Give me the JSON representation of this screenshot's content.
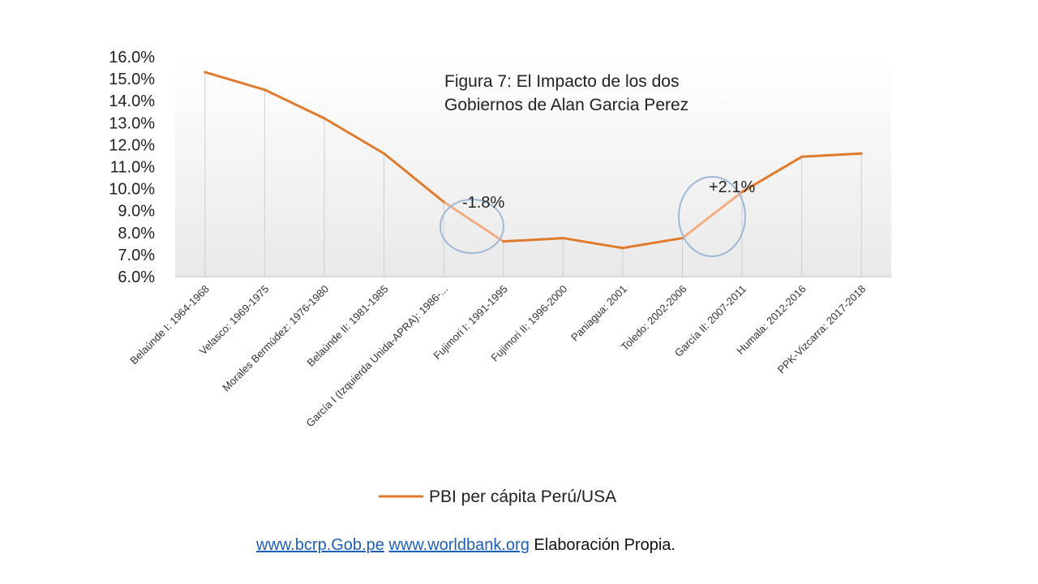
{
  "chart_data": {
    "type": "line",
    "title_lines": [
      "Figura 7: El Impacto de los dos",
      "Gobiernos de Alan Garcia Perez"
    ],
    "categories": [
      "Belaúnde I: 1964-1968",
      "Velasco: 1969-1975",
      "Morales Bermúdez: 1976-1980",
      "Belaúnde II: 1981-1985",
      "García I (Izquierda Unida-APRA): 1986-...",
      "Fujimori I: 1991-1995",
      "Fujimori II: 1996-2000",
      "Paniagua: 2001",
      "Toledo: 2002-2006",
      "García II: 2007-2011",
      "Humala: 2012-2016",
      "PPK-Vizcarra: 2017-2018"
    ],
    "series": [
      {
        "name": "PBI per cápita Perú/USA",
        "values": [
          15.3,
          14.5,
          13.2,
          11.6,
          9.4,
          7.6,
          7.75,
          7.3,
          7.75,
          9.85,
          11.45,
          11.6
        ],
        "color": "#e07b2e",
        "highlight_color": "#f1ad80"
      }
    ],
    "yticks": [
      "16.0%",
      "15.0%",
      "14.0%",
      "13.0%",
      "12.0%",
      "11.0%",
      "10.0%",
      "9.0%",
      "8.0%",
      "7.0%",
      "6.0%"
    ],
    "ylim": [
      6,
      16
    ],
    "annotations": [
      {
        "text": "-1.8%",
        "segment": [
          4,
          5
        ]
      },
      {
        "text": "+2.1%",
        "segment": [
          8,
          9
        ]
      }
    ],
    "grid": "vertical drop lines",
    "legend_position": "bottom"
  },
  "source": {
    "link1": "www.bcrp.Gob.pe",
    "link2": "www.worldbank.org",
    "text": "Elaboración Propia."
  }
}
